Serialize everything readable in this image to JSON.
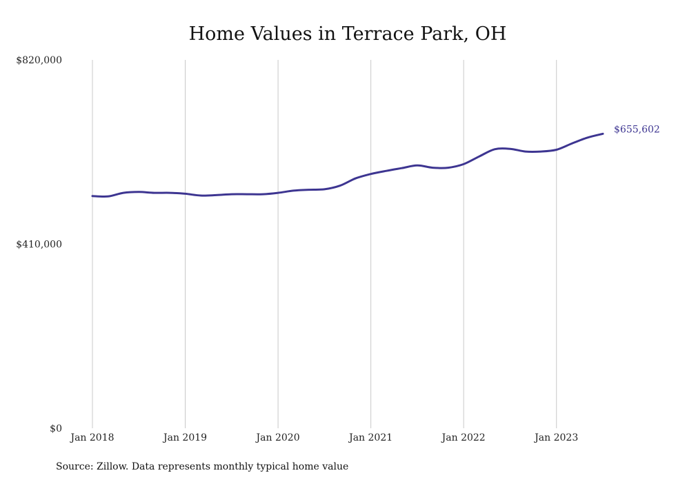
{
  "chart_data": {
    "type": "line",
    "title": "Home Values in Terrace Park, OH",
    "xlabel": "",
    "ylabel": "",
    "source": "Source: Zillow. Data represents monthly typical home value",
    "y_ticks": [
      "$0",
      "$410,000",
      "$820,000"
    ],
    "y_tick_values": [
      0,
      410000,
      820000
    ],
    "ylim": [
      0,
      820000
    ],
    "x_ticks": [
      "Jan 2018",
      "Jan 2019",
      "Jan 2020",
      "Jan 2021",
      "Jan 2022",
      "Jan 2023"
    ],
    "x_tick_values": [
      "2018-01",
      "2019-01",
      "2020-01",
      "2021-01",
      "2022-01",
      "2023-01"
    ],
    "xlim": [
      "2018-01",
      "2023-07"
    ],
    "grid": "vertical",
    "end_label": "$655,602",
    "colors": {
      "line": "#3d3591"
    },
    "series": [
      {
        "x": [
          "2018-01",
          "2018-03",
          "2018-05",
          "2018-07",
          "2018-09",
          "2018-11",
          "2019-01",
          "2019-03",
          "2019-05",
          "2019-07",
          "2019-09",
          "2019-11",
          "2020-01",
          "2020-03",
          "2020-05",
          "2020-07",
          "2020-09",
          "2020-11",
          "2021-01",
          "2021-03",
          "2021-05",
          "2021-07",
          "2021-09",
          "2021-11",
          "2022-01",
          "2022-03",
          "2022-05",
          "2022-07",
          "2022-09",
          "2022-11",
          "2023-01",
          "2023-03",
          "2023-05",
          "2023-07"
        ],
        "values": [
          517000,
          516000,
          524000,
          526000,
          524000,
          524000,
          522000,
          518000,
          519000,
          521000,
          521000,
          521000,
          524000,
          529000,
          531000,
          532000,
          540000,
          556000,
          566000,
          573000,
          579000,
          585000,
          580000,
          580000,
          588000,
          605000,
          621000,
          622000,
          616000,
          616000,
          620000,
          634000,
          647000,
          655602
        ]
      }
    ]
  }
}
